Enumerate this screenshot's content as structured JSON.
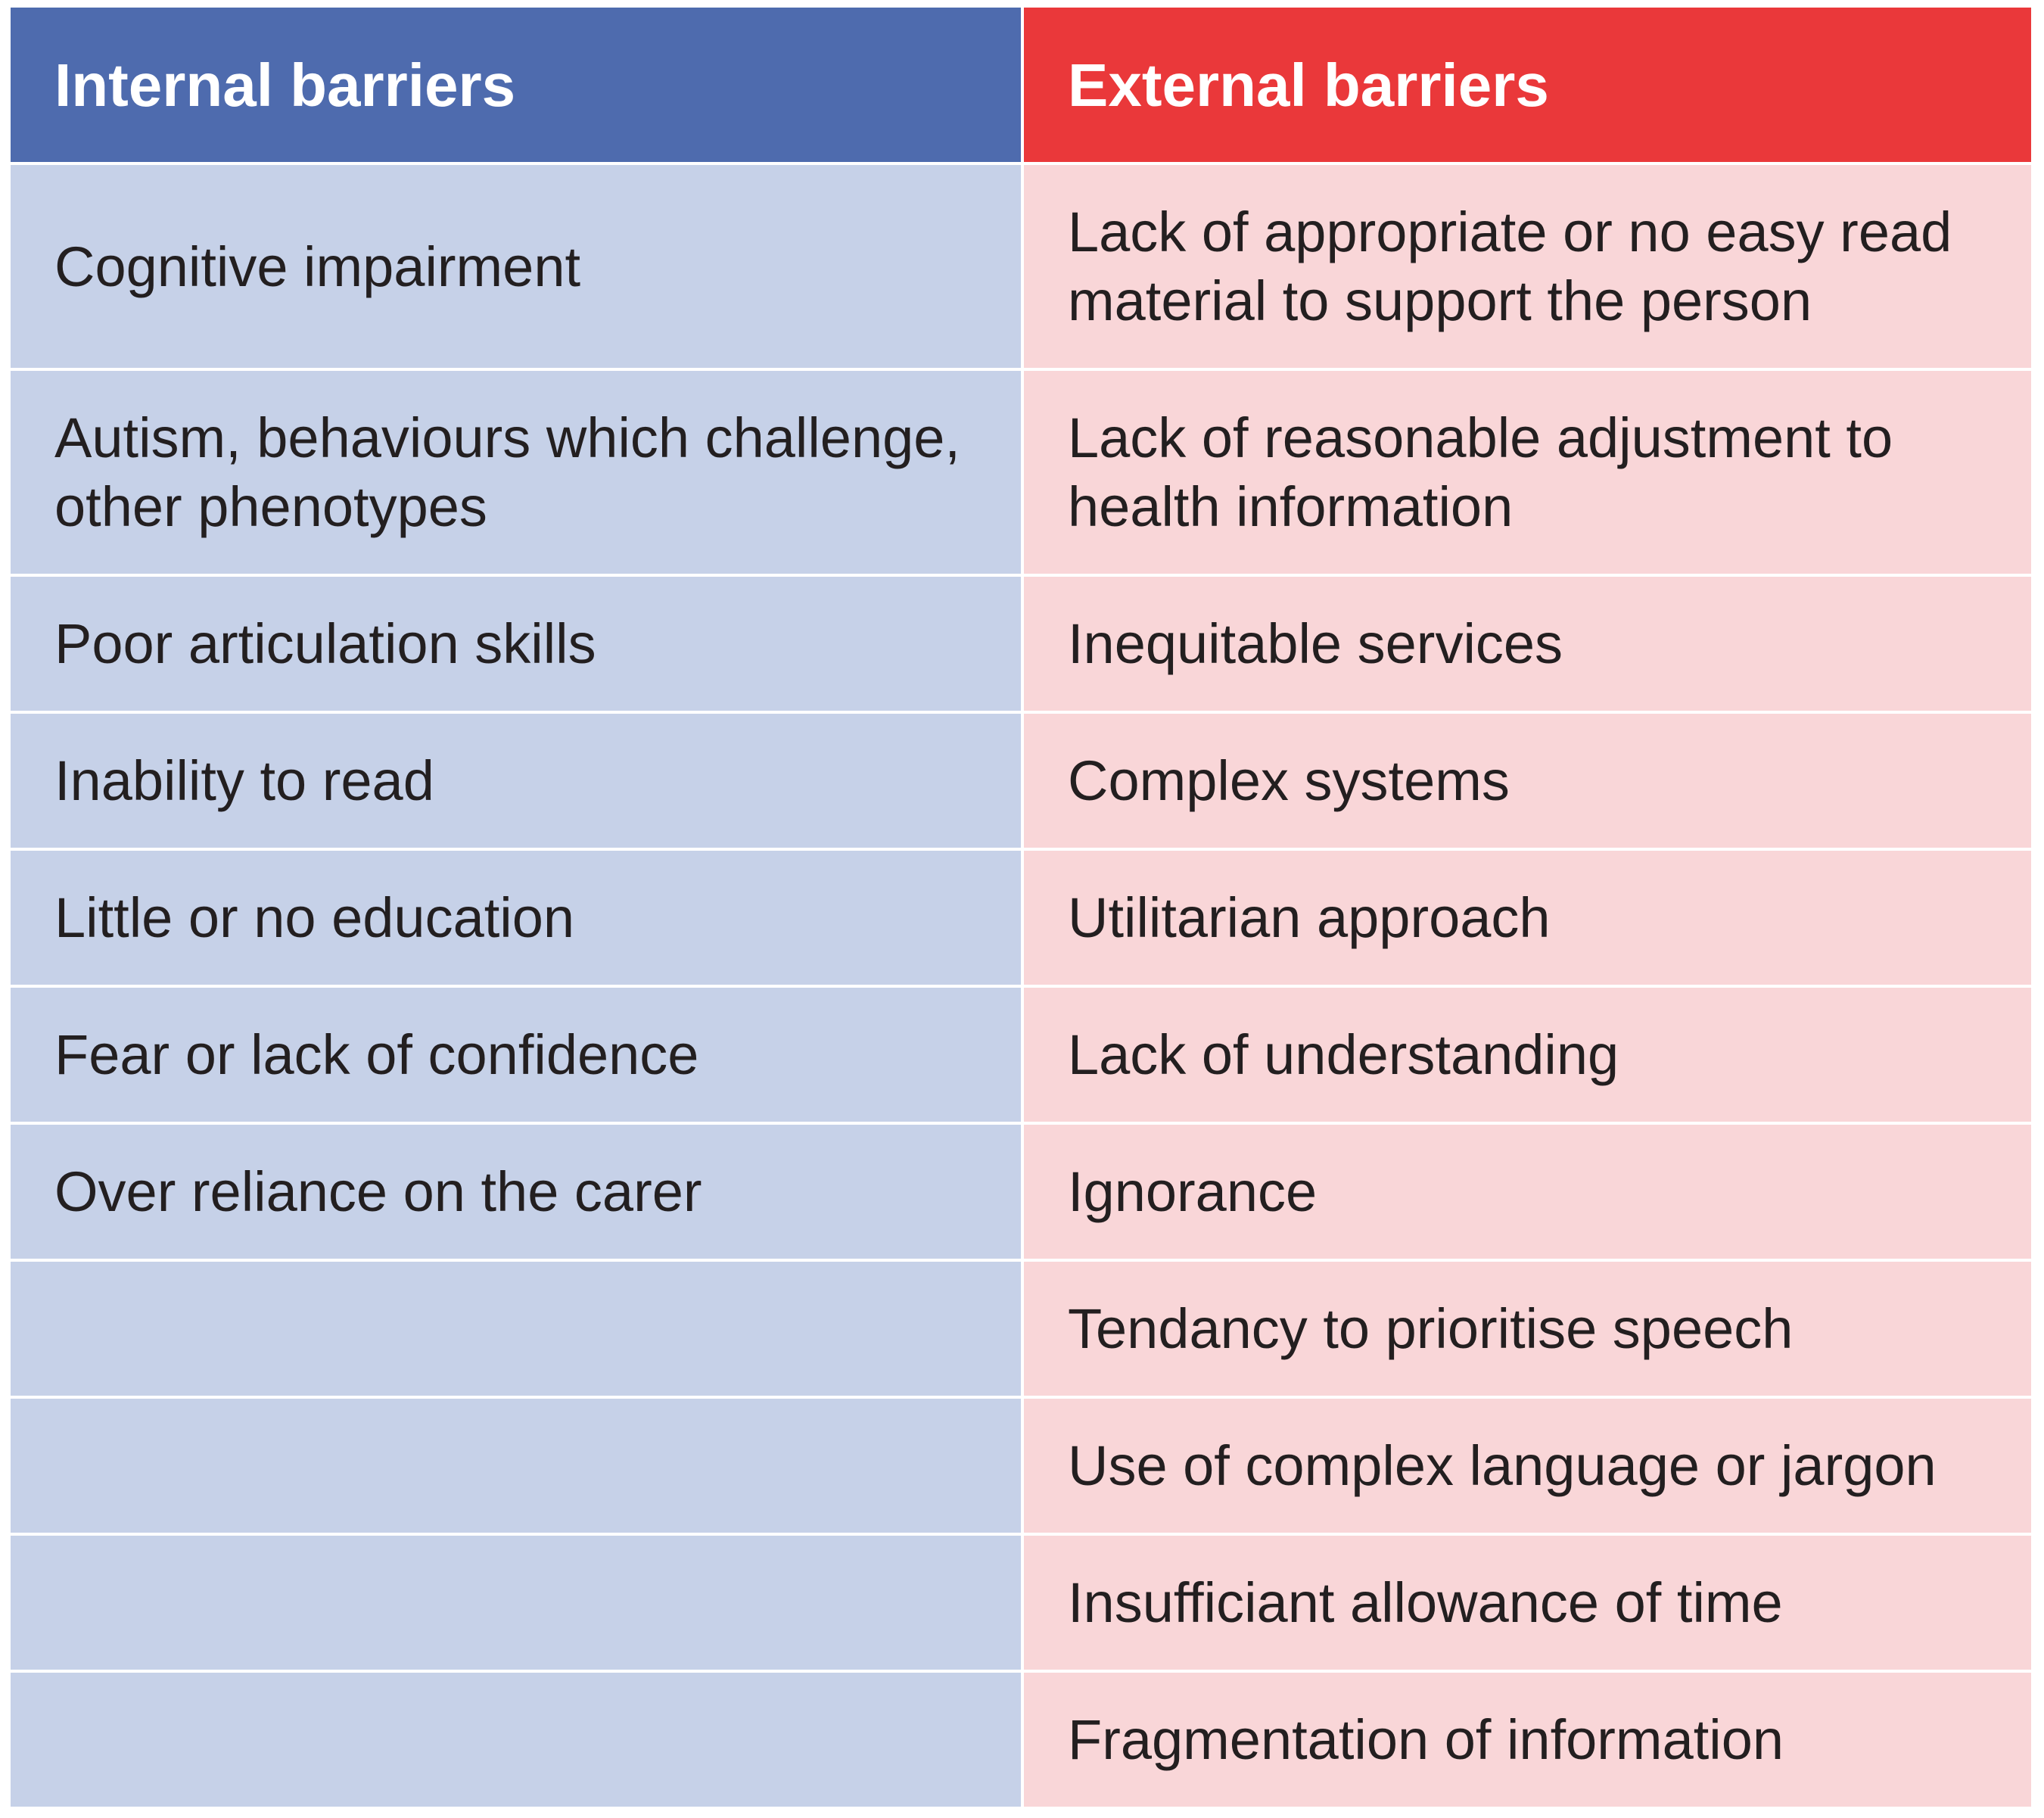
{
  "table": {
    "headers": {
      "internal": "Internal barriers",
      "external": "External barriers"
    },
    "rows": [
      {
        "internal": "Cognitive impairment",
        "external": "Lack of appropriate or no easy read material to support the person"
      },
      {
        "internal": "Autism, behaviours which challenge, other phenotypes",
        "external": "Lack of reasonable adjustment to health information"
      },
      {
        "internal": "Poor articulation skills",
        "external": "Inequitable services"
      },
      {
        "internal": "Inability to read",
        "external": "Complex systems"
      },
      {
        "internal": "Little or no education",
        "external": "Utilitarian approach"
      },
      {
        "internal": "Fear or lack of confidence",
        "external": "Lack of understanding"
      },
      {
        "internal": "Over reliance on the carer",
        "external": "Ignorance"
      },
      {
        "internal": "",
        "external": "Tendancy to prioritise speech"
      },
      {
        "internal": "",
        "external": "Use of complex language or jargon"
      },
      {
        "internal": "",
        "external": "Insufficiant allowance of time"
      },
      {
        "internal": "",
        "external": "Fragmentation of information"
      }
    ],
    "colors": {
      "internal_header": "#4e6bae",
      "external_header": "#ea383a",
      "internal_body": "#c6d1e8",
      "external_body": "#f9d6d8"
    }
  }
}
